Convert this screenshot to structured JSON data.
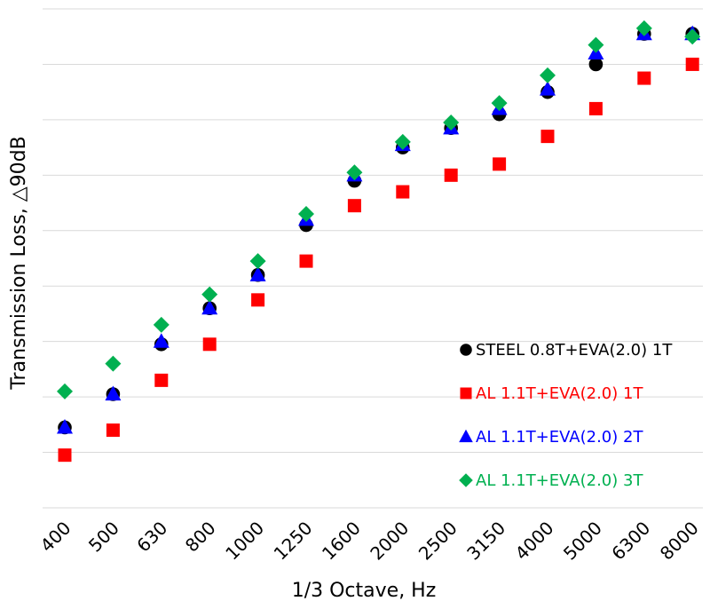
{
  "chart_data": {
    "type": "scatter",
    "title": "",
    "xlabel": "1/3 Octave, Hz",
    "ylabel": "Transmission Loss, △90dB",
    "categories": [
      "400",
      "500",
      "630",
      "800",
      "1000",
      "1250",
      "1600",
      "2000",
      "2500",
      "3150",
      "4000",
      "5000",
      "6300",
      "8000"
    ],
    "ylim": [
      0,
      9
    ],
    "grid": true,
    "y_tick_labels_shown": false,
    "legend_position": "bottom-right",
    "series": [
      {
        "name": "STEEL 0.8T+EVA(2.0) 1T",
        "marker": "circle",
        "color": "#000000",
        "values": [
          1.45,
          2.05,
          2.95,
          3.6,
          4.2,
          5.1,
          5.9,
          6.5,
          6.85,
          7.1,
          7.5,
          8.0,
          8.55,
          8.55
        ]
      },
      {
        "name": "AL 1.1T+EVA(2.0) 1T",
        "marker": "square",
        "color": "#ff0000",
        "values": [
          0.95,
          1.4,
          2.3,
          2.95,
          3.75,
          4.45,
          5.45,
          5.7,
          6.0,
          6.2,
          6.7,
          7.2,
          7.75,
          8.0
        ]
      },
      {
        "name": "AL 1.1T+EVA(2.0) 2T",
        "marker": "triangle",
        "color": "#0000ff",
        "values": [
          1.45,
          2.05,
          3.0,
          3.6,
          4.2,
          5.2,
          6.0,
          6.55,
          6.85,
          7.2,
          7.55,
          8.2,
          8.55,
          8.55
        ]
      },
      {
        "name": "AL 1.1T+EVA(2.0) 3T",
        "marker": "diamond",
        "color": "#00b050",
        "values": [
          2.1,
          2.6,
          3.3,
          3.85,
          4.45,
          5.3,
          6.05,
          6.6,
          6.95,
          7.3,
          7.8,
          8.35,
          8.65,
          8.5
        ]
      }
    ]
  }
}
